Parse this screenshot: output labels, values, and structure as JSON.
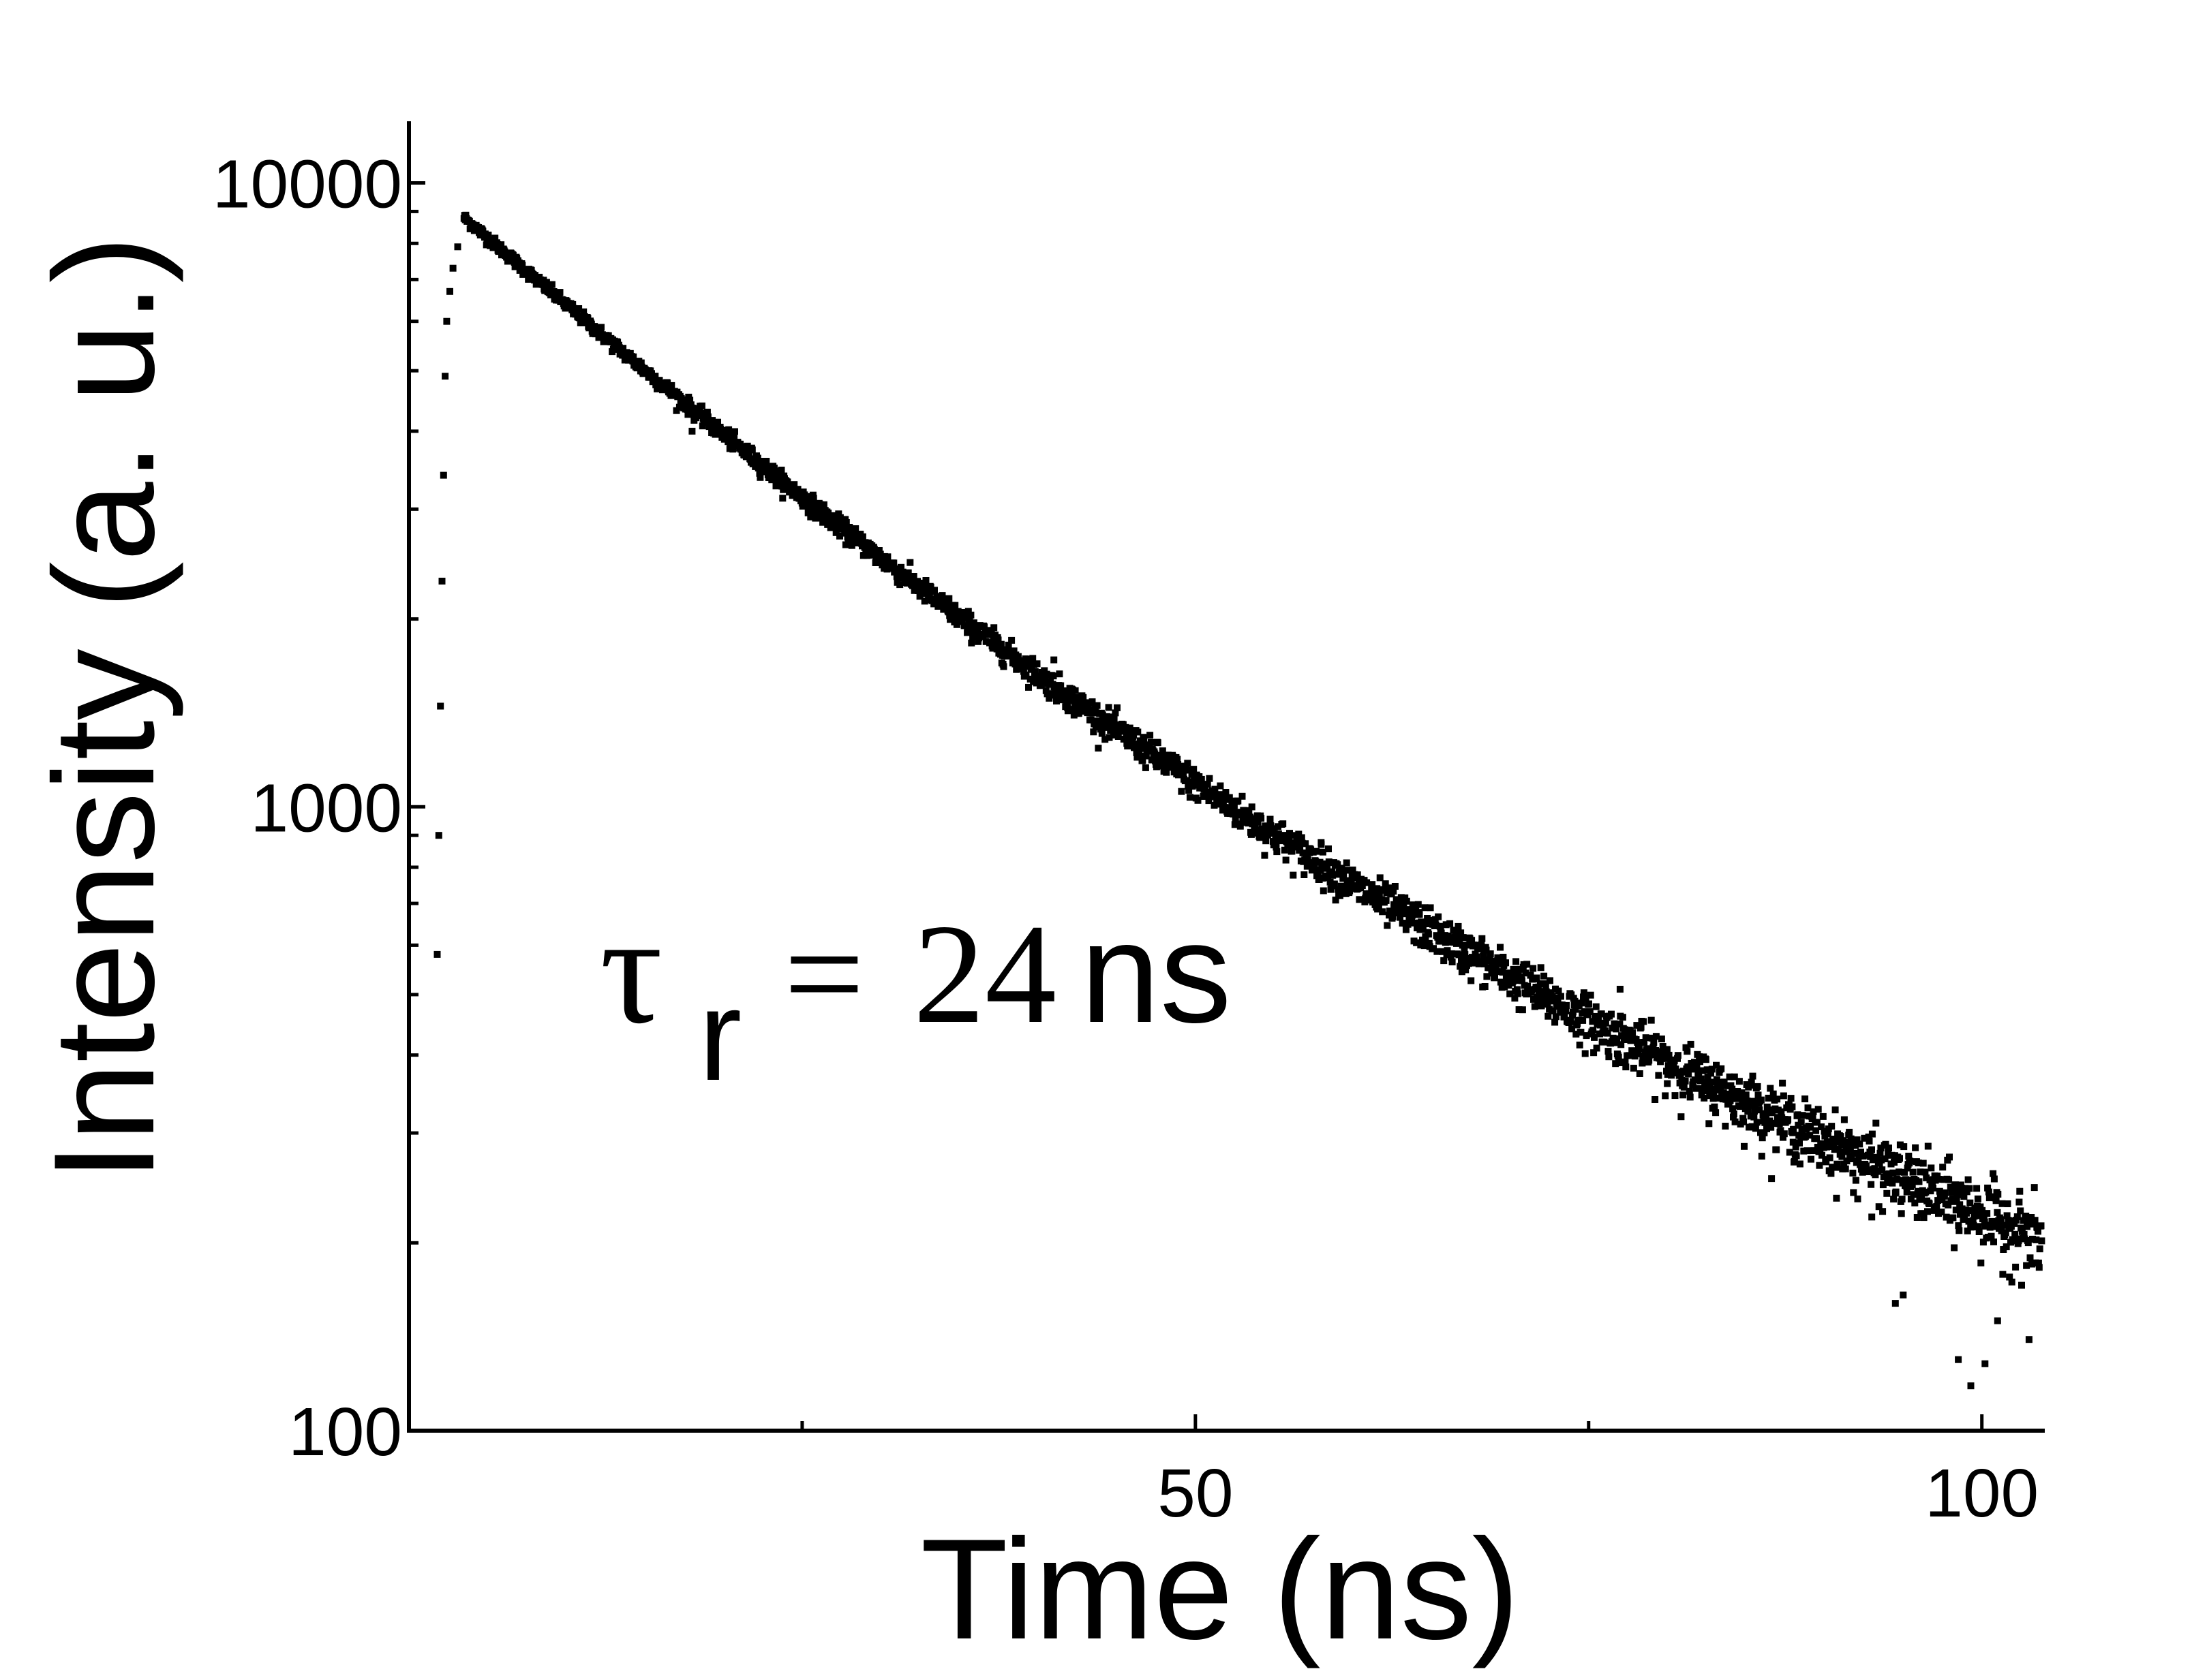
{
  "chart_data": {
    "type": "scatter",
    "title": "",
    "xlabel": "Time (ns)",
    "ylabel": "Intensity (a. u.)",
    "xlim": [
      0,
      104
    ],
    "ylim": [
      100,
      12000
    ],
    "yscale": "log",
    "grid": false,
    "legend": "none",
    "x_ticks": [
      {
        "value": 50,
        "label": "50"
      },
      {
        "value": 100,
        "label": "100"
      }
    ],
    "x_minor_ticks": [
      25,
      75
    ],
    "y_ticks": [
      {
        "value": 100,
        "label": "100"
      },
      {
        "value": 1000,
        "label": "1000"
      },
      {
        "value": 10000,
        "label": "10000"
      }
    ],
    "y_minor_ticks": [
      200,
      300,
      400,
      500,
      600,
      700,
      800,
      900,
      2000,
      3000,
      4000,
      5000,
      6000,
      7000,
      8000,
      9000
    ],
    "annotation": {
      "symbol": "τ",
      "subscript": "r",
      "equals": "=",
      "value": "24",
      "unit": "ns"
    },
    "series": [
      {
        "marker": "square",
        "color": "#000000",
        "rise": [
          {
            "x": 1.8,
            "y": 580
          },
          {
            "x": 1.9,
            "y": 900
          },
          {
            "x": 2.0,
            "y": 1450
          },
          {
            "x": 2.1,
            "y": 2300
          },
          {
            "x": 2.2,
            "y": 3400
          },
          {
            "x": 2.3,
            "y": 4900
          },
          {
            "x": 2.4,
            "y": 6000
          },
          {
            "x": 2.6,
            "y": 6700
          },
          {
            "x": 2.8,
            "y": 7300
          },
          {
            "x": 3.1,
            "y": 7900
          }
        ],
        "decay": {
          "x_start": 3.5,
          "x_end": 103.8,
          "points": 2600,
          "amplitudes": [
            7400,
            1400
          ],
          "lifetimes_ns": [
            18,
            48
          ],
          "scatter_sqrt_counts": 1.0
        },
        "outliers": [
          {
            "x": 18,
            "y": 4000
          },
          {
            "x": 41,
            "y": 1720
          },
          {
            "x": 58,
            "y": 870
          },
          {
            "x": 68,
            "y": 600
          },
          {
            "x": 77,
            "y": 510
          },
          {
            "x": 80,
            "y": 360
          },
          {
            "x": 88,
            "y": 290
          },
          {
            "x": 93,
            "y": 220
          },
          {
            "x": 94.5,
            "y": 160
          },
          {
            "x": 95,
            "y": 165
          },
          {
            "x": 98.5,
            "y": 130
          },
          {
            "x": 99.3,
            "y": 118
          },
          {
            "x": 100.2,
            "y": 128
          },
          {
            "x": 101,
            "y": 150
          },
          {
            "x": 103,
            "y": 140
          }
        ]
      }
    ]
  }
}
